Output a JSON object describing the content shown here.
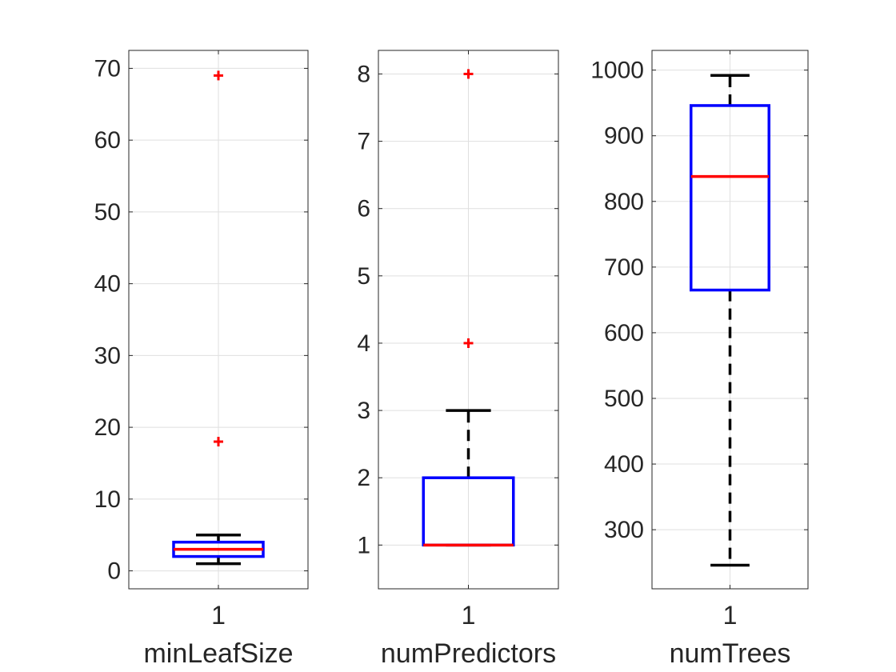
{
  "chart_data": [
    {
      "type": "box",
      "category": "1",
      "xlabel": "minLeafSize",
      "ylim": [
        -2.5,
        72.5
      ],
      "yticks": [
        0,
        10,
        20,
        30,
        40,
        50,
        60,
        70
      ],
      "box": {
        "q1": 2,
        "median": 3,
        "q3": 4,
        "whisker_low": 1,
        "whisker_high": 5
      },
      "outliers": [
        18,
        69
      ]
    },
    {
      "type": "box",
      "category": "1",
      "xlabel": "numPredictors",
      "ylim": [
        0.35,
        8.35
      ],
      "yticks": [
        1,
        2,
        3,
        4,
        5,
        6,
        7,
        8
      ],
      "box": {
        "q1": 1,
        "median": 1,
        "q3": 2,
        "whisker_low": 1,
        "whisker_high": 3
      },
      "outliers": [
        4,
        8
      ]
    },
    {
      "type": "box",
      "category": "1",
      "xlabel": "numTrees",
      "ylim": [
        210,
        1030
      ],
      "yticks": [
        300,
        400,
        500,
        600,
        700,
        800,
        900,
        1000
      ],
      "box": {
        "q1": 665,
        "median": 838,
        "q3": 946,
        "whisker_low": 246,
        "whisker_high": 992
      },
      "outliers": []
    }
  ],
  "colors": {
    "box": "#0000ff",
    "median": "#ff0000",
    "whisker": "#000000",
    "outlier": "#ff0000",
    "axis": "#262626",
    "grid": "#dfdfdf"
  },
  "grid": true
}
